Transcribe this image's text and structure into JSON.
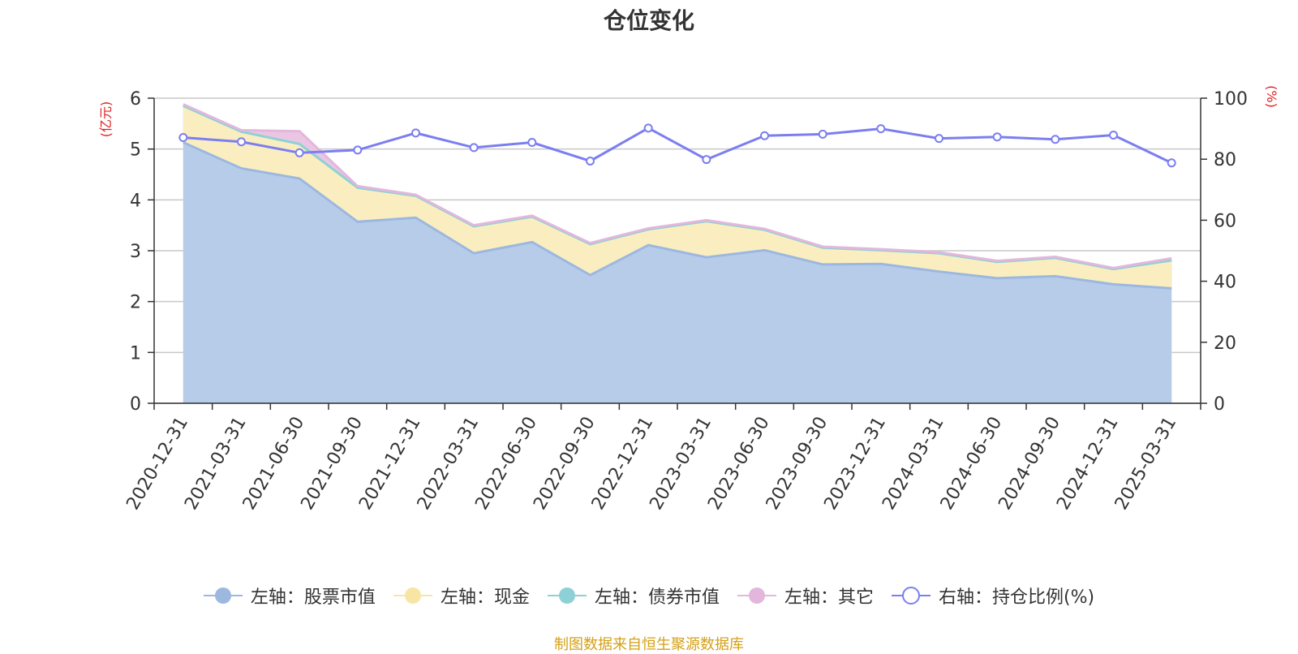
{
  "title": "仓位变化",
  "source_note": "制图数据来自恒生聚源数据库",
  "chart_data": {
    "type": "area",
    "categories": [
      "2020-12-31",
      "2021-03-31",
      "2021-06-30",
      "2021-09-30",
      "2021-12-31",
      "2022-03-31",
      "2022-06-30",
      "2022-09-30",
      "2022-12-31",
      "2023-03-31",
      "2023-06-30",
      "2023-09-30",
      "2023-12-31",
      "2024-03-31",
      "2024-06-30",
      "2024-09-30",
      "2024-12-31",
      "2025-03-31"
    ],
    "y_left": {
      "unit_label": "(亿元)",
      "ylim": [
        0,
        6
      ],
      "ticks": [
        "0",
        "1",
        "2",
        "3",
        "4",
        "5",
        "6"
      ]
    },
    "y_right": {
      "unit_label": "(%)",
      "ylim": [
        0,
        100
      ],
      "ticks": [
        "0",
        "20",
        "40",
        "60",
        "80",
        "100"
      ]
    },
    "grid": true,
    "legend_position": "bottom",
    "series": [
      {
        "name": "左轴：股票市值",
        "axis": "left",
        "kind": "stack",
        "color": "#9cb8e0",
        "fill": "#b7cce9",
        "values": [
          5.13,
          4.62,
          4.42,
          3.57,
          3.65,
          2.95,
          3.17,
          2.52,
          3.11,
          2.87,
          3.01,
          2.73,
          2.74,
          2.59,
          2.46,
          2.5,
          2.34,
          2.26
        ]
      },
      {
        "name": "左轴：现金",
        "axis": "left",
        "kind": "stack",
        "color": "#f7e6a3",
        "fill": "#faeec0",
        "values": [
          0.72,
          0.72,
          0.68,
          0.67,
          0.43,
          0.53,
          0.5,
          0.61,
          0.31,
          0.71,
          0.4,
          0.33,
          0.27,
          0.36,
          0.32,
          0.36,
          0.3,
          0.55
        ]
      },
      {
        "name": "左轴：债券市值",
        "axis": "left",
        "kind": "stack",
        "color": "#8dd1d6",
        "fill": "#bfe5e8",
        "values": [
          0,
          0,
          0,
          0,
          0,
          0,
          0,
          0,
          0,
          0,
          0,
          0,
          0,
          0,
          0,
          0,
          0,
          0
        ]
      },
      {
        "name": "左轴：其它",
        "axis": "left",
        "kind": "stack",
        "color": "#e3b7dc",
        "fill": "#ebc6e4",
        "values": [
          0.03,
          0.03,
          0.25,
          0.03,
          0.02,
          0.02,
          0.02,
          0.02,
          0.02,
          0.02,
          0.02,
          0.02,
          0.02,
          0.02,
          0.02,
          0.02,
          0.02,
          0.04
        ]
      },
      {
        "name": "右轴：持仓比例(%)",
        "axis": "right",
        "kind": "line",
        "color": "#7b7ef0",
        "values": [
          87.1,
          85.7,
          82.1,
          83.0,
          88.6,
          83.8,
          85.5,
          79.4,
          90.2,
          79.9,
          87.7,
          88.2,
          90.0,
          86.8,
          87.3,
          86.5,
          87.9,
          78.8
        ]
      }
    ]
  }
}
